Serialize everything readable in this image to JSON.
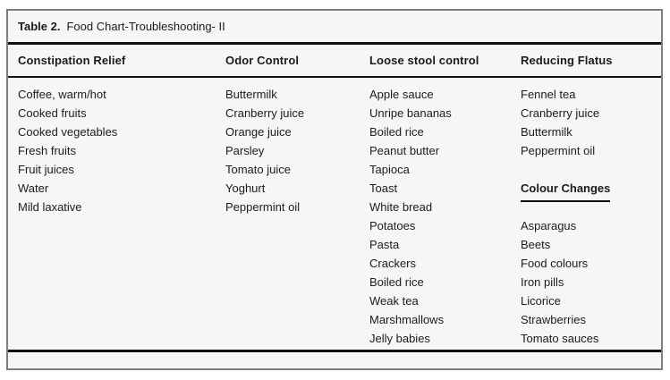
{
  "table": {
    "title_prefix": "Table 2.",
    "title": "Food Chart-Troubleshooting- II",
    "columns": [
      {
        "header": "Constipation Relief",
        "rows": [
          {
            "text": "Coffee, warm/hot"
          },
          {
            "text": "Cooked fruits"
          },
          {
            "text": "Cooked vegetables"
          },
          {
            "text": "Fresh fruits"
          },
          {
            "text": "Fruit juices"
          },
          {
            "text": "Water"
          },
          {
            "text": "Mild laxative"
          }
        ]
      },
      {
        "header": "Odor Control",
        "rows": [
          {
            "text": "Buttermilk"
          },
          {
            "text": "Cranberry juice"
          },
          {
            "text": "Orange juice"
          },
          {
            "text": "Parsley"
          },
          {
            "text": "Tomato juice"
          },
          {
            "text": "Yoghurt"
          },
          {
            "text": "Peppermint oil"
          }
        ]
      },
      {
        "header": "Loose stool control",
        "rows": [
          {
            "text": "Apple sauce"
          },
          {
            "text": "Unripe bananas"
          },
          {
            "text": "Boiled rice"
          },
          {
            "text": "Peanut butter"
          },
          {
            "text": "Tapioca"
          },
          {
            "text": "Toast"
          },
          {
            "text": "White bread"
          },
          {
            "text": "Potatoes"
          },
          {
            "text": "Pasta"
          },
          {
            "text": "Crackers"
          },
          {
            "text": "Boiled rice"
          },
          {
            "text": "Weak tea"
          },
          {
            "text": "Marshmallows"
          },
          {
            "text": "Jelly babies"
          }
        ]
      },
      {
        "header": "Reducing Flatus",
        "rows": [
          {
            "text": "Fennel tea"
          },
          {
            "text": "Cranberry juice"
          },
          {
            "text": "Buttermilk"
          },
          {
            "text": "Peppermint oil"
          },
          {
            "text": ""
          },
          {
            "text": "Colour Changes",
            "subheader": true
          },
          {
            "text": ""
          },
          {
            "text": "Asparagus"
          },
          {
            "text": "Beets"
          },
          {
            "text": "Food colours"
          },
          {
            "text": "Iron pills"
          },
          {
            "text": "Licorice"
          },
          {
            "text": "Strawberries"
          },
          {
            "text": "Tomato sauces"
          }
        ]
      }
    ]
  }
}
